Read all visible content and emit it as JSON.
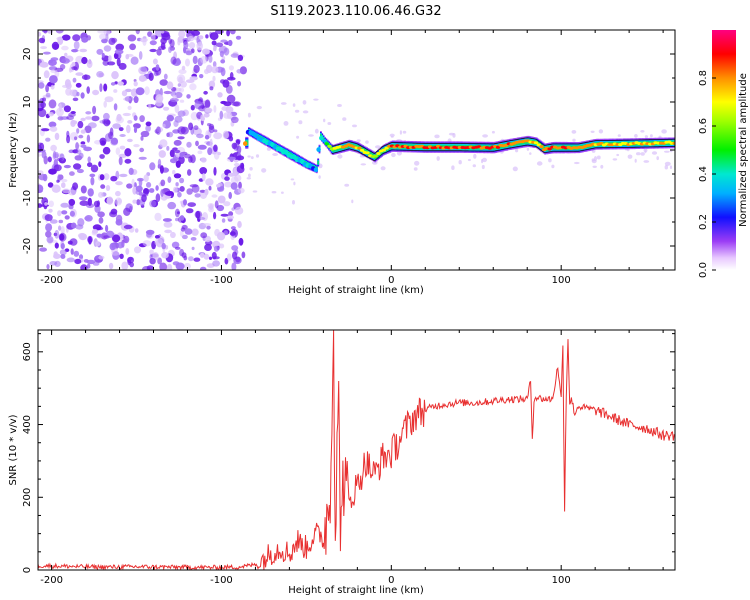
{
  "figure_title": "S119.2023.110.06.46.G32",
  "colors": {
    "snr_line": "#e83030",
    "noise_speckle": "#7a20f0",
    "axis": "#000000",
    "background": "#ffffff"
  },
  "chart_data": [
    {
      "type": "heatmap",
      "title": "",
      "xlabel": "Height of straight line (km)",
      "ylabel": "Frequency (Hz)",
      "xlim": [
        -208,
        167
      ],
      "ylim": [
        -25,
        25
      ],
      "xticks": [
        -200,
        -100,
        0,
        100
      ],
      "yticks": [
        -20,
        -10,
        0,
        10,
        20
      ],
      "grid": false,
      "noise_region_x": [
        -208,
        -87
      ],
      "colorbar": {
        "label": "Normalized spectral amplitude",
        "range": [
          0,
          1
        ],
        "ticks": [
          0.0,
          0.2,
          0.4,
          0.6,
          0.8
        ],
        "colormap": "rainbow (white-purple-blue-cyan-green-yellow-red-magenta)",
        "position": "right"
      },
      "ridge": {
        "x": [
          -85,
          -80,
          -75,
          -70,
          -65,
          -60,
          -55,
          -50,
          -47,
          -44,
          -42,
          -40,
          -35,
          -30,
          -25,
          -20,
          -15,
          -10,
          -5,
          0,
          10,
          20,
          40,
          60,
          70,
          80,
          85,
          90,
          95,
          100,
          110,
          120,
          140,
          167
        ],
        "freq": [
          4,
          3,
          2,
          1,
          0,
          -1,
          -2,
          -3,
          -3.5,
          -4,
          3,
          2,
          0,
          0.5,
          1,
          0.5,
          -0.5,
          -1.5,
          0,
          0.8,
          0.7,
          0.6,
          0.6,
          0.5,
          1.2,
          1.8,
          1.5,
          0.2,
          0.5,
          0.5,
          0.5,
          1.2,
          1.3,
          1.5
        ],
        "amplitude": [
          0.3,
          0.35,
          0.45,
          0.4,
          0.45,
          0.5,
          0.45,
          0.4,
          0.35,
          0.3,
          0.35,
          0.4,
          0.7,
          0.8,
          0.85,
          0.8,
          0.75,
          0.7,
          0.8,
          0.9,
          0.9,
          0.9,
          0.9,
          0.9,
          0.85,
          0.85,
          0.8,
          0.85,
          0.9,
          0.9,
          0.85,
          0.8,
          0.8,
          0.8
        ]
      }
    },
    {
      "type": "line",
      "title": "",
      "xlabel": "Height of straight line (km)",
      "ylabel": "SNR (10 * v/v)",
      "xlim": [
        -208,
        167
      ],
      "ylim": [
        0,
        660
      ],
      "xticks": [
        -200,
        -100,
        0,
        100
      ],
      "yticks": [
        0,
        200,
        400,
        600
      ],
      "grid": false,
      "series": [
        {
          "x": [
            -208,
            -190,
            -170,
            -150,
            -130,
            -110,
            -90,
            -80,
            -75,
            -70,
            -65,
            -60,
            -55,
            -50,
            -45,
            -40,
            -36,
            -35,
            -34,
            -33,
            -32,
            -31,
            -30,
            -28,
            -25,
            -22,
            -20,
            -15,
            -10,
            -5,
            0,
            5,
            10,
            15,
            20,
            25,
            30,
            40,
            50,
            60,
            70,
            80,
            82,
            83,
            84,
            85,
            90,
            95,
            98,
            100,
            101,
            102,
            103,
            104,
            105,
            106,
            108,
            110,
            120,
            130,
            140,
            150,
            160,
            167
          ],
          "y": [
            12,
            10,
            8,
            9,
            8,
            7,
            8,
            15,
            30,
            50,
            60,
            45,
            80,
            60,
            100,
            90,
            200,
            480,
            660,
            100,
            300,
            450,
            150,
            250,
            180,
            220,
            230,
            300,
            260,
            310,
            320,
            360,
            400,
            430,
            440,
            450,
            455,
            460,
            460,
            465,
            470,
            470,
            520,
            360,
            470,
            475,
            470,
            470,
            560,
            470,
            620,
            170,
            480,
            640,
            460,
            470,
            430,
            450,
            440,
            420,
            400,
            390,
            370,
            370
          ]
        }
      ]
    }
  ]
}
